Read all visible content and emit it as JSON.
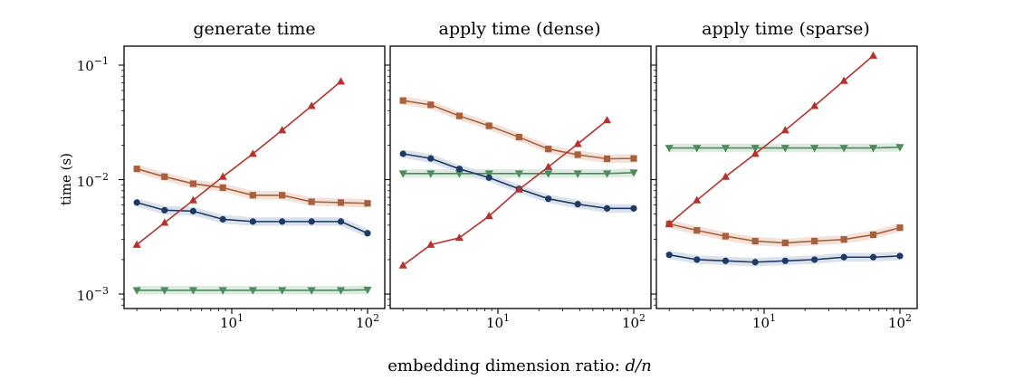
{
  "figure": {
    "xlabel_prefix": "embedding dimension ratio: ",
    "xlabel_var": "d/n",
    "ylabel": "time (s)",
    "y_tick_labels": [
      {
        "base": "10",
        "exp": "−1"
      },
      {
        "base": "10",
        "exp": "−2"
      },
      {
        "base": "10",
        "exp": "−3"
      }
    ],
    "x_tick_labels": [
      {
        "base": "10",
        "exp": "1"
      },
      {
        "base": "10",
        "exp": "2"
      }
    ]
  },
  "colors": {
    "red": "#b5322e",
    "brown": "#a8603c",
    "navy": "#1c3a63",
    "green": "#4f8a5c",
    "brown_band": "#f1ddd3",
    "navy_band": "#d6dde8",
    "green_band": "#d8e8da"
  },
  "chart_data": [
    {
      "type": "line",
      "title": "generate time",
      "x_scale": "log",
      "y_scale": "log",
      "xlim": [
        1.8,
        110
      ],
      "ylim": [
        0.00085,
        0.14
      ],
      "x": [
        2,
        3.2,
        5.2,
        8.6,
        14.3,
        23.5,
        38.7,
        63.6,
        100
      ],
      "series": [
        {
          "marker": "triangle-up",
          "color": "red",
          "x": [
            2,
            3.2,
            5.2,
            8.6,
            14.3,
            23.5,
            38.7,
            63.6
          ],
          "values": [
            0.0027,
            0.0042,
            0.0066,
            0.0106,
            0.0168,
            0.027,
            0.044,
            0.072
          ]
        },
        {
          "marker": "square",
          "color": "brown",
          "band": true,
          "values": [
            0.0124,
            0.0106,
            0.0092,
            0.0085,
            0.0073,
            0.0073,
            0.0064,
            0.0063,
            0.0062
          ]
        },
        {
          "marker": "circle",
          "color": "navy",
          "band": true,
          "values": [
            0.0063,
            0.0054,
            0.0053,
            0.0045,
            0.0043,
            0.0043,
            0.0043,
            0.0043,
            0.0034
          ]
        },
        {
          "marker": "triangle-down",
          "color": "green",
          "band": true,
          "values": [
            0.00108,
            0.00108,
            0.00108,
            0.00108,
            0.00108,
            0.00108,
            0.00108,
            0.00108,
            0.00109
          ]
        }
      ]
    },
    {
      "type": "line",
      "title": "apply time (dense)",
      "x_scale": "log",
      "y_scale": "log",
      "xlim": [
        1.8,
        110
      ],
      "ylim": [
        0.00085,
        0.14
      ],
      "x": [
        2,
        3.2,
        5.2,
        8.6,
        14.3,
        23.5,
        38.7,
        63.6,
        100
      ],
      "series": [
        {
          "marker": "triangle-up",
          "color": "red",
          "x": [
            2,
            3.2,
            5.2,
            8.6,
            14.3,
            23.5,
            38.7,
            63.6
          ],
          "values": [
            0.00178,
            0.0027,
            0.0031,
            0.0048,
            0.0082,
            0.0129,
            0.0205,
            0.033
          ]
        },
        {
          "marker": "square",
          "color": "brown",
          "band": true,
          "values": [
            0.049,
            0.045,
            0.036,
            0.0295,
            0.0235,
            0.0185,
            0.0165,
            0.0152,
            0.0153
          ]
        },
        {
          "marker": "circle",
          "color": "navy",
          "band": true,
          "values": [
            0.0168,
            0.0153,
            0.0124,
            0.0104,
            0.0083,
            0.0068,
            0.0061,
            0.0056,
            0.0056
          ]
        },
        {
          "marker": "triangle-down",
          "color": "green",
          "band": true,
          "values": [
            0.0113,
            0.0113,
            0.0113,
            0.0113,
            0.0113,
            0.0113,
            0.0113,
            0.0113,
            0.0115
          ]
        }
      ]
    },
    {
      "type": "line",
      "title": "apply time (sparse)",
      "x_scale": "log",
      "y_scale": "log",
      "xlim": [
        1.8,
        110
      ],
      "ylim": [
        0.00085,
        0.14
      ],
      "x": [
        2,
        3.2,
        5.2,
        8.6,
        14.3,
        23.5,
        38.7,
        63.6,
        100
      ],
      "series": [
        {
          "marker": "triangle-up",
          "color": "red",
          "x": [
            2,
            3.2,
            5.2,
            8.6,
            14.3,
            23.5,
            38.7,
            63.6
          ],
          "values": [
            0.0041,
            0.0066,
            0.0106,
            0.0168,
            0.027,
            0.044,
            0.073,
            0.121
          ]
        },
        {
          "marker": "square",
          "color": "brown",
          "band": true,
          "values": [
            0.0041,
            0.0036,
            0.0032,
            0.0029,
            0.0028,
            0.0029,
            0.003,
            0.0033,
            0.0038
          ]
        },
        {
          "marker": "circle",
          "color": "navy",
          "band": true,
          "values": [
            0.0022,
            0.002,
            0.00195,
            0.0019,
            0.00195,
            0.002,
            0.0021,
            0.0021,
            0.00215
          ]
        },
        {
          "marker": "triangle-down",
          "color": "green",
          "band": true,
          "values": [
            0.0189,
            0.0189,
            0.0189,
            0.0189,
            0.0189,
            0.0189,
            0.0189,
            0.0189,
            0.0192
          ]
        }
      ]
    }
  ]
}
